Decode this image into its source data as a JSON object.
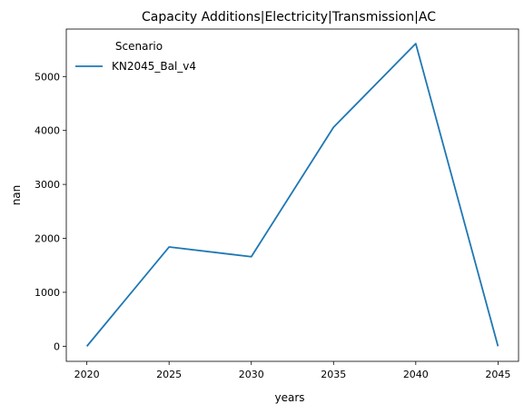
{
  "chart_data": {
    "type": "line",
    "title": "Capacity Additions|Electricity|Transmission|AC",
    "xlabel": "years",
    "ylabel": "nan",
    "x": [
      2020,
      2025,
      2030,
      2035,
      2040,
      2045
    ],
    "xticks": [
      "2020",
      "2025",
      "2030",
      "2035",
      "2040",
      "2045"
    ],
    "yticks": [
      "0",
      "1000",
      "2000",
      "3000",
      "4000",
      "5000"
    ],
    "xlim": [
      2018.75,
      2046.25
    ],
    "ylim": [
      -280,
      5880
    ],
    "grid": false,
    "legend": {
      "title": "Scenario",
      "placement": "top-left"
    },
    "series": [
      {
        "name": "KN2045_Bal_v4",
        "color": "#1f77b4",
        "values": [
          0,
          1840,
          1660,
          4060,
          5610,
          0
        ]
      }
    ]
  }
}
